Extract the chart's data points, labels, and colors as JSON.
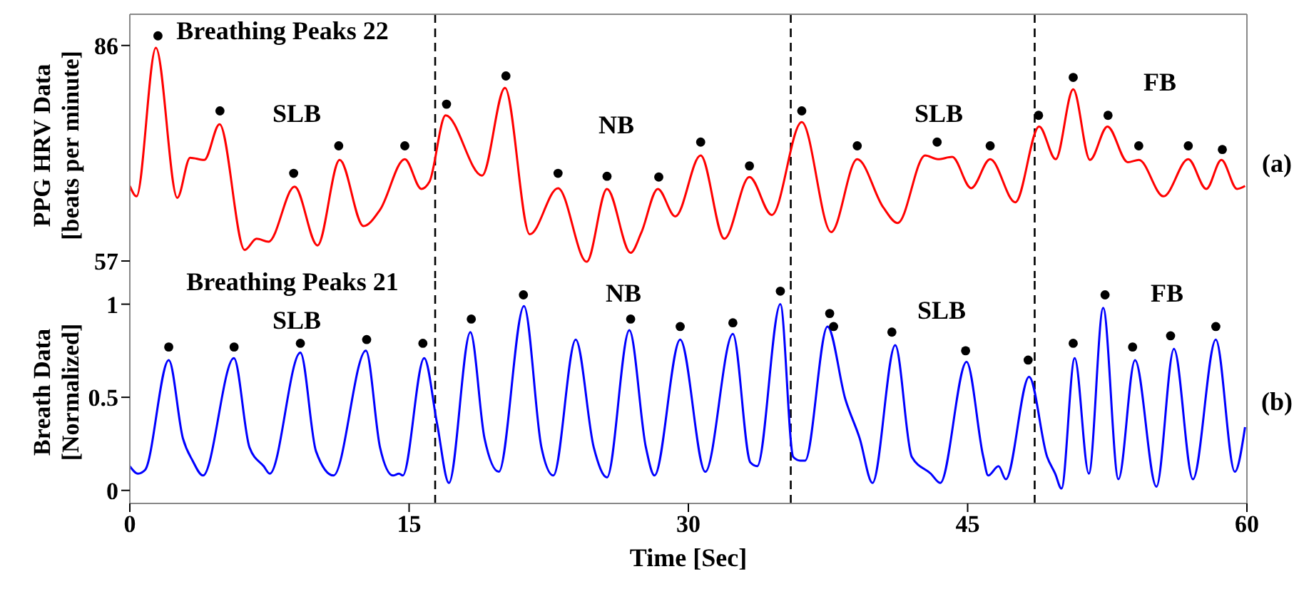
{
  "chart_data": [
    {
      "type": "line",
      "ylabel": "PPG HRV Data\n[beats per minute]",
      "xlim": [
        0,
        60
      ],
      "xticks": [
        0,
        15,
        30,
        45,
        60
      ],
      "ylim": [
        54.7,
        90.2
      ],
      "yticks": [
        57,
        86
      ],
      "tick_labels": "y",
      "annotations": [
        "Breathing Peaks 22",
        "SLB",
        "NB",
        "SLB",
        "FB",
        "(a)"
      ],
      "ref_lines": [
        {
          "axis": "x",
          "value": 16.4,
          "color": "#000000",
          "line_style": "dashed"
        },
        {
          "axis": "x",
          "value": 35.5,
          "color": "#000000",
          "line_style": "dashed"
        },
        {
          "axis": "x",
          "value": 48.6,
          "color": "#000000",
          "line_style": "dashed"
        }
      ],
      "series": [
        {
          "color": "#ff0000",
          "x": [
            0,
            0.36,
            1.4,
            2.55,
            3.24,
            4.0,
            4.82,
            6.17,
            6.81,
            7.45,
            8.85,
            10.08,
            11.27,
            12.55,
            13.44,
            14.77,
            15.66,
            16.1,
            16.96,
            18.92,
            20.15,
            21.48,
            23.0,
            24.54,
            25.63,
            26.9,
            27.47,
            28.36,
            29.3,
            30.66,
            31.93,
            33.28,
            34.48,
            36.09,
            37.67,
            39.07,
            40.47,
            41.24,
            42.72,
            43.4,
            44.17,
            45.19,
            46.21,
            47.56,
            48.84,
            49.73,
            50.67,
            51.57,
            52.51,
            53.6,
            54.2,
            55.52,
            56.85,
            57.82,
            58.63,
            59.47,
            59.9
          ],
          "values": [
            67.1,
            65.7,
            85.7,
            65.5,
            70.9,
            70.6,
            75.4,
            58.5,
            60.0,
            59.6,
            67.0,
            59.1,
            70.6,
            61.7,
            63.9,
            70.7,
            66.7,
            67.7,
            76.6,
            68.5,
            80.3,
            60.6,
            66.8,
            56.9,
            66.7,
            58.1,
            60.8,
            66.7,
            63.0,
            71.2,
            60.0,
            68.3,
            63.2,
            75.7,
            60.9,
            70.7,
            64.2,
            62.1,
            71.2,
            70.7,
            71.0,
            66.8,
            70.7,
            64.9,
            75.1,
            70.7,
            80.1,
            70.6,
            75.1,
            70.3,
            70.6,
            65.7,
            70.7,
            66.7,
            70.6,
            66.7,
            67.1
          ]
        },
        {
          "type": "scatter",
          "color": "#000000",
          "marker": "circle",
          "x": [
            1.51,
            4.84,
            8.8,
            11.22,
            14.77,
            17.01,
            20.2,
            23.0,
            25.63,
            28.41,
            30.66,
            33.28,
            36.09,
            39.07,
            43.36,
            46.21,
            48.81,
            50.67,
            52.54,
            54.19,
            56.85,
            58.68
          ],
          "values": [
            87.3,
            77.2,
            68.8,
            72.5,
            72.5,
            78.1,
            81.9,
            68.8,
            68.4,
            68.3,
            73.0,
            69.8,
            77.2,
            72.5,
            73.0,
            72.5,
            76.6,
            81.7,
            76.6,
            72.5,
            72.5,
            72.0
          ]
        }
      ]
    },
    {
      "type": "line",
      "xlabel": "Time [Sec]",
      "ylabel": "Breath Data\n[Normalized]",
      "xlim": [
        0,
        60
      ],
      "xticks": [
        0,
        15,
        30,
        45,
        60
      ],
      "ylim": [
        -0.07,
        1.14
      ],
      "yticks": [
        0,
        0.5,
        1
      ],
      "annotations": [
        "Breathing Peaks 21",
        "SLB",
        "NB",
        "SLB",
        "FB",
        "(b)"
      ],
      "ref_lines": [
        {
          "axis": "x",
          "value": 16.4,
          "color": "#000000",
          "line_style": "dashed"
        },
        {
          "axis": "x",
          "value": 35.5,
          "color": "#000000",
          "line_style": "dashed"
        },
        {
          "axis": "x",
          "value": 48.6,
          "color": "#000000",
          "line_style": "dashed"
        }
      ],
      "series": [
        {
          "color": "#0000ff",
          "x": [
            0,
            0.44,
            0.82,
            2.09,
            2.85,
            3.37,
            3.93,
            5.59,
            6.43,
            7.19,
            7.52,
            9.16,
            10.0,
            10.94,
            12.68,
            13.44,
            14.13,
            14.46,
            14.66,
            15.81,
            16.5,
            17.14,
            18.29,
            19.05,
            19.82,
            21.17,
            22.11,
            22.75,
            23.95,
            24.92,
            25.63,
            26.83,
            27.72,
            28.18,
            29.56,
            30.91,
            32.39,
            33.33,
            33.7,
            34.94,
            35.63,
            36.01,
            36.27,
            37.47,
            38.43,
            39.2,
            39.89,
            41.11,
            42.0,
            43.02,
            43.53,
            44.94,
            45.84,
            46.1,
            46.66,
            47.05,
            48.3,
            49.27,
            49.7,
            50.04,
            50.75,
            51.51,
            52.28,
            53.1,
            53.99,
            55.14,
            56.08,
            57.1,
            58.33,
            59.35,
            59.9
          ],
          "values": [
            0.13,
            0.09,
            0.11,
            0.7,
            0.28,
            0.16,
            0.08,
            0.71,
            0.23,
            0.13,
            0.09,
            0.74,
            0.21,
            0.08,
            0.75,
            0.23,
            0.08,
            0.09,
            0.08,
            0.71,
            0.36,
            0.04,
            0.85,
            0.28,
            0.1,
            0.99,
            0.23,
            0.08,
            0.81,
            0.23,
            0.07,
            0.86,
            0.23,
            0.08,
            0.81,
            0.1,
            0.84,
            0.15,
            0.13,
            1.0,
            0.18,
            0.16,
            0.16,
            0.88,
            0.49,
            0.28,
            0.04,
            0.78,
            0.18,
            0.09,
            0.04,
            0.69,
            0.18,
            0.08,
            0.13,
            0.06,
            0.61,
            0.18,
            0.09,
            0.01,
            0.71,
            0.09,
            0.98,
            0.06,
            0.7,
            0.02,
            0.76,
            0.06,
            0.81,
            0.1,
            0.34
          ]
        },
        {
          "type": "scatter",
          "color": "#000000",
          "marker": "circle",
          "x": [
            2.09,
            5.6,
            9.16,
            12.72,
            15.74,
            18.34,
            21.14,
            26.9,
            29.56,
            32.39,
            34.94,
            37.59,
            37.8,
            40.93,
            44.89,
            48.25,
            50.67,
            52.38,
            53.86,
            55.9,
            58.33
          ],
          "values": [
            0.77,
            0.77,
            0.79,
            0.81,
            0.79,
            0.92,
            1.05,
            0.92,
            0.88,
            0.9,
            1.07,
            0.95,
            0.88,
            0.85,
            0.75,
            0.7,
            0.79,
            1.05,
            0.77,
            0.83,
            0.88
          ]
        }
      ]
    }
  ]
}
